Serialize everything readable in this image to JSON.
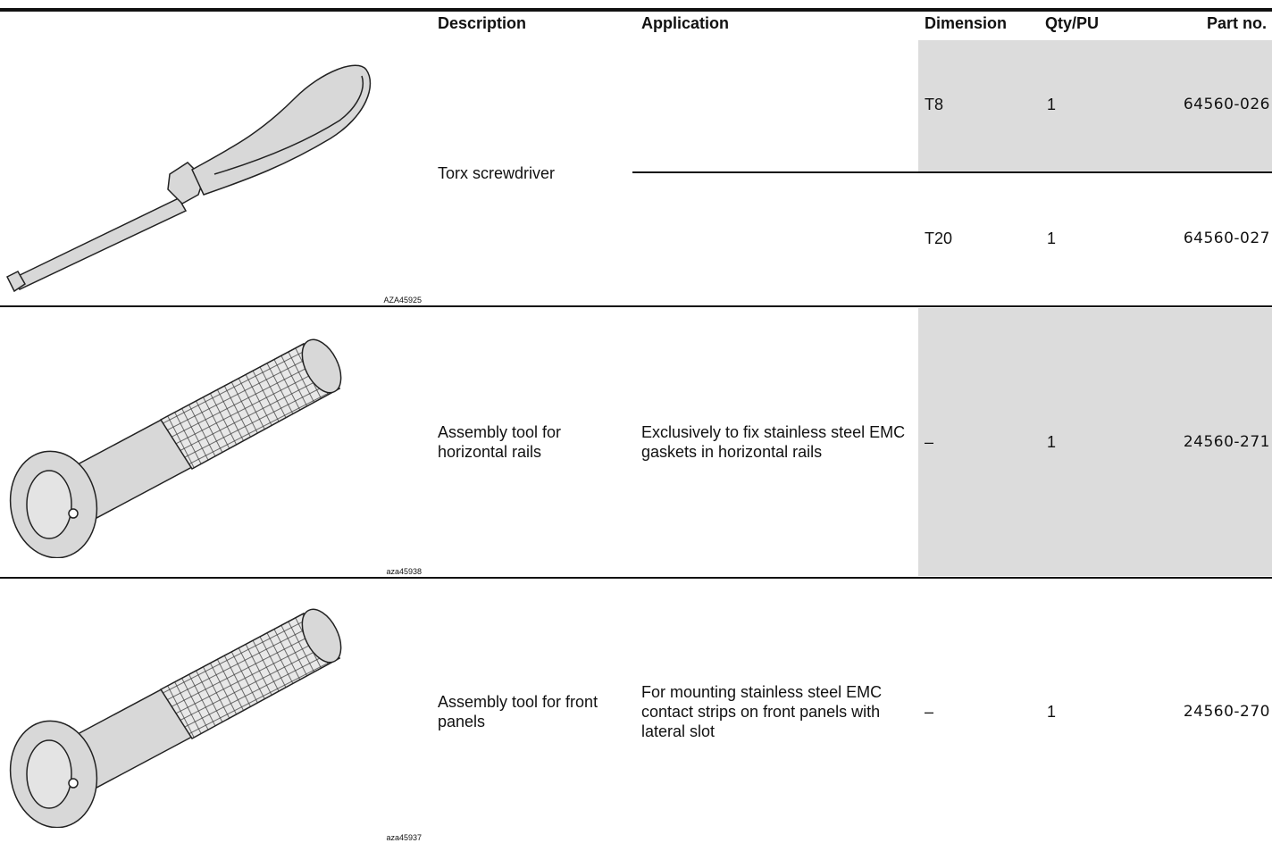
{
  "header": {
    "columns": [
      "Description",
      "Application",
      "Dimension",
      "Qty/PU",
      "Part no."
    ]
  },
  "rows": [
    {
      "image_id": "AZA45925",
      "description": "Torx screwdriver",
      "variants": [
        {
          "dimension": "T8",
          "qty": 1,
          "part_no": "64560-026"
        },
        {
          "dimension": "T20",
          "qty": 1,
          "part_no": "64560-027"
        }
      ]
    },
    {
      "image_id": "aza45938",
      "description": "Assembly tool for horizontal rails",
      "variants": [
        {
          "application": "Exclusively to fix stainless steel EMC gaskets in horizontal rails",
          "dimension": "–",
          "qty": 1,
          "part_no": "24560-271"
        }
      ]
    },
    {
      "image_id": "aza45937",
      "description": "Assembly tool for front panels",
      "variants": [
        {
          "application": "For mounting stainless steel EMC contact strips on front panels with lateral slot",
          "dimension": "–",
          "qty": 1,
          "part_no": "24560-270"
        }
      ]
    }
  ]
}
